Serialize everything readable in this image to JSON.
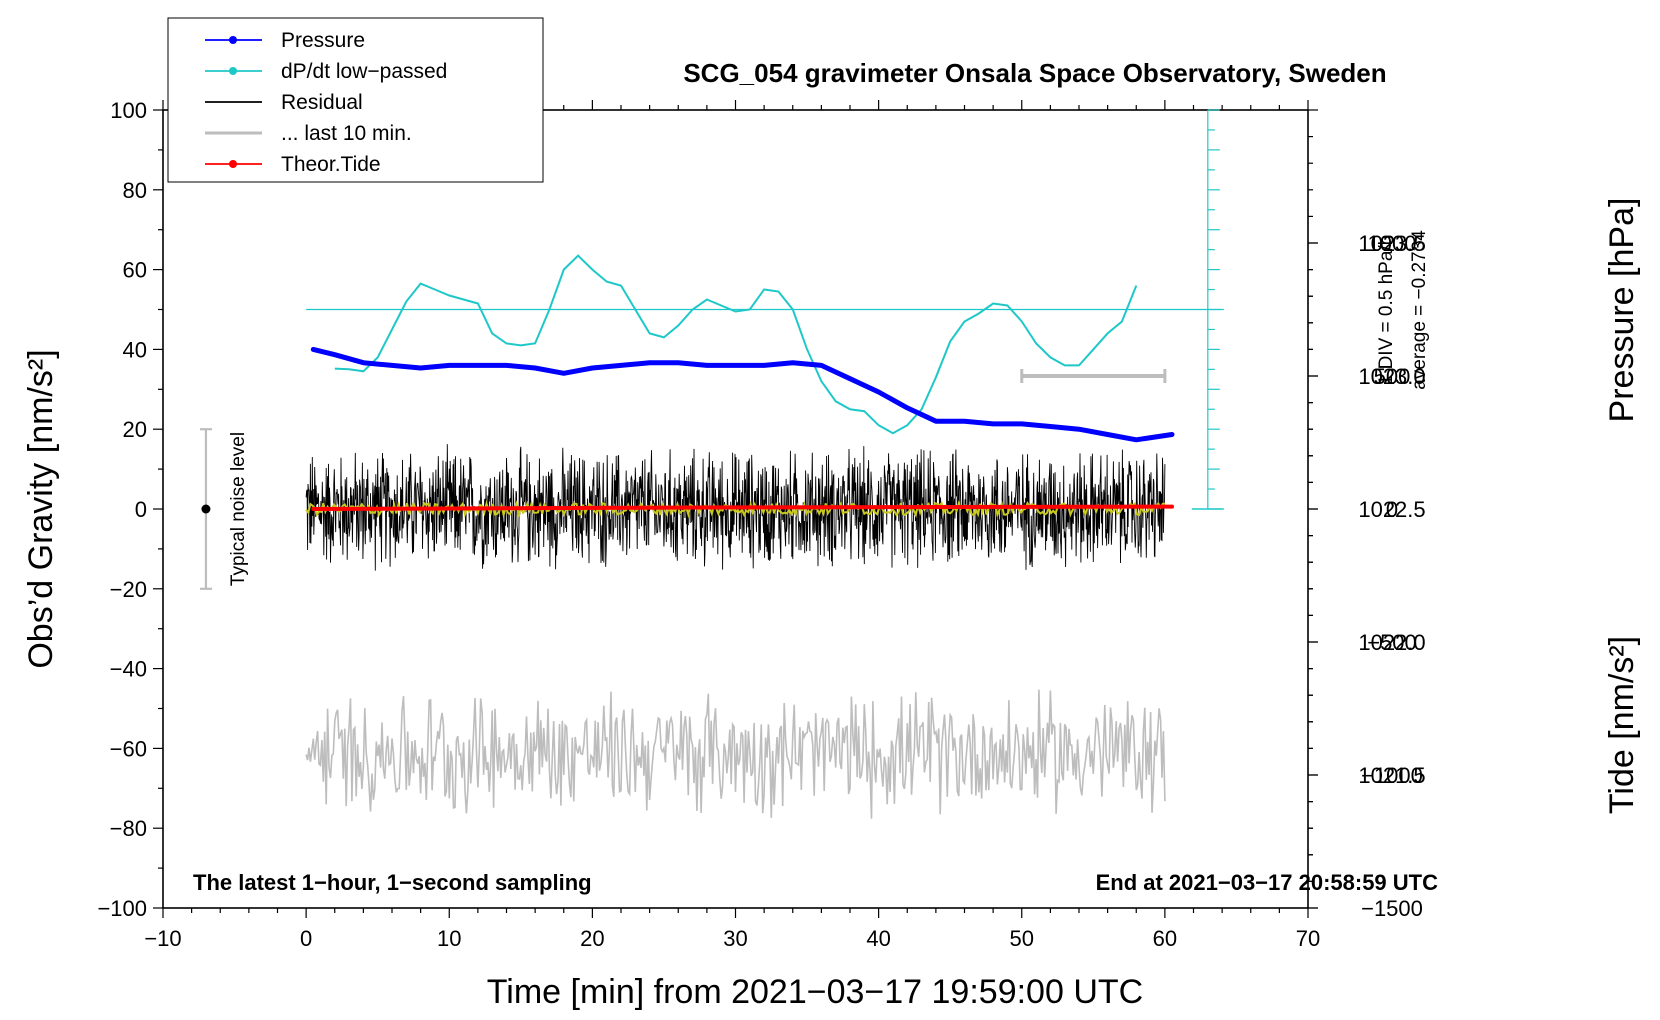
{
  "chart_data": {
    "type": "line",
    "title": "SCG_054 gravimeter Onsala Space Observatory, Sweden",
    "xlabel": "Time [min] from 2021−03−17 19:59:00 UTC",
    "ylabel": "Obs’d Gravity [nm/s²]",
    "ylabel_right_top": "Pressure [hPa]",
    "ylabel_right_bottom": "Tide [nm/s²]",
    "xlim": [
      -10,
      70
    ],
    "ylim": [
      -100,
      100
    ],
    "pressure_lim": [
      1021.0,
      1024.0
    ],
    "tide_lim": [
      -1500,
      1500
    ],
    "x_ticks": [
      -10,
      0,
      10,
      20,
      30,
      40,
      50,
      60,
      70
    ],
    "x_tick_labels": [
      "−10",
      "0",
      "10",
      "20",
      "30",
      "40",
      "50",
      "60",
      "70"
    ],
    "y_ticks": [
      -100,
      -80,
      -60,
      -40,
      -20,
      0,
      20,
      40,
      60,
      80,
      100
    ],
    "y_tick_labels": [
      "−100",
      "−80",
      "−60",
      "−40",
      "−20",
      "0",
      "20",
      "40",
      "60",
      "80",
      "100"
    ],
    "pressure_ticks": [
      1021.5,
      1022.0,
      1022.5,
      1023.0,
      1023.5
    ],
    "pressure_tick_labels": [
      "1021.5",
      "1022.0",
      "1022.5",
      "1023.0",
      "1023.5"
    ],
    "tide_ticks": [
      -1500,
      -1000,
      -500,
      0,
      500,
      1000
    ],
    "tide_tick_labels": [
      "−1500",
      "−1000",
      "−500",
      "0",
      "500",
      "1000"
    ],
    "legend": {
      "placement": "top-left",
      "entries": [
        {
          "label": "Pressure",
          "color": "#0000ff",
          "marker": true
        },
        {
          "label": "dP/dt low−passed",
          "color": "#1fc8c8",
          "marker": true
        },
        {
          "label": "Residual",
          "color": "#000000",
          "marker": false
        },
        {
          "label": "... last 10 min.",
          "color": "#bdbdbd",
          "marker": false
        },
        {
          "label": "Theor.Tide",
          "color": "#ff0000",
          "marker": true
        }
      ]
    },
    "annotations": {
      "bottom_left": "The latest 1−hour, 1−second sampling",
      "bottom_right": "End at 2021−03−17 20:58:59 UTC",
      "noise_label": "Typical noise level",
      "div_label": "1 DIV = 0.5 hPa/h",
      "average_label": "average = −0.2734"
    },
    "noise_bar": {
      "x": -7,
      "y_low": -20,
      "y_high": 20,
      "center": 0
    },
    "last10_bar": {
      "x_start": 50,
      "x_end": 60,
      "tide": 500
    },
    "dpdt_scale": {
      "x": 63,
      "y_bottom": 0,
      "y_top": 100,
      "divisions": 20,
      "zero_y": 50
    },
    "series": [
      {
        "name": "Pressure",
        "axis": "pressure",
        "color": "#0000ff",
        "x": [
          0.5,
          2,
          4,
          6,
          8,
          10,
          12,
          14,
          16,
          18,
          20,
          22,
          24,
          26,
          28,
          30,
          32,
          34,
          36,
          38,
          40,
          42,
          44,
          46,
          48,
          50,
          52,
          54,
          56,
          58,
          60.5
        ],
        "values": [
          1023.1,
          1023.08,
          1023.05,
          1023.04,
          1023.03,
          1023.04,
          1023.04,
          1023.04,
          1023.03,
          1023.01,
          1023.03,
          1023.04,
          1023.05,
          1023.05,
          1023.04,
          1023.04,
          1023.04,
          1023.05,
          1023.04,
          1022.99,
          1022.94,
          1022.88,
          1022.83,
          1022.83,
          1022.82,
          1022.82,
          1022.81,
          1022.8,
          1022.78,
          1022.76,
          1022.78
        ]
      },
      {
        "name": "dP/dt low−passed",
        "axis": "gravity",
        "color": "#1fc8c8",
        "x": [
          2,
          3,
          4,
          5,
          6,
          7,
          8,
          9,
          10,
          11,
          12,
          13,
          14,
          15,
          16,
          17,
          18,
          19,
          20,
          21,
          22,
          23,
          24,
          25,
          26,
          27,
          28,
          29,
          30,
          31,
          32,
          33,
          34,
          35,
          36,
          37,
          38,
          39,
          40,
          41,
          42,
          43,
          44,
          45,
          46,
          47,
          48,
          49,
          50,
          51,
          52,
          53,
          54,
          55,
          56,
          57,
          58
        ],
        "values": [
          35.2,
          35,
          34.5,
          38,
          45,
          52,
          56.5,
          55,
          53.5,
          52.5,
          51.5,
          44,
          41.5,
          41,
          41.5,
          50,
          60,
          63.5,
          60,
          57,
          56,
          50,
          44,
          43,
          46,
          50,
          52.5,
          51,
          49.5,
          50,
          55,
          54.5,
          50,
          40,
          32,
          27,
          25,
          24.5,
          21,
          19,
          21,
          25,
          33,
          42,
          47,
          49,
          51.5,
          51,
          47,
          41.5,
          38,
          36,
          36,
          40,
          44,
          47,
          56
        ]
      },
      {
        "name": "Residual",
        "axis": "gravity",
        "color": "#000000",
        "x_range": [
          0,
          60
        ],
        "amplitude": 17,
        "note": "1-second sampled noise around 0"
      },
      {
        "name": "Residual smoothed",
        "axis": "gravity",
        "color": "#c8c81e",
        "x_range": [
          0,
          60
        ],
        "amplitude": 1.5
      },
      {
        "name": "... last 10 min.",
        "axis": "gravity",
        "color": "#bdbdbd",
        "x_range": [
          0,
          60
        ],
        "center": -61,
        "amplitude": 17
      },
      {
        "name": "Theor.Tide",
        "axis": "tide",
        "color": "#ff0000",
        "x": [
          0.5,
          10,
          20,
          30,
          40,
          50,
          60.5
        ],
        "values": [
          0,
          2,
          4,
          6,
          7,
          8,
          9
        ]
      }
    ]
  }
}
